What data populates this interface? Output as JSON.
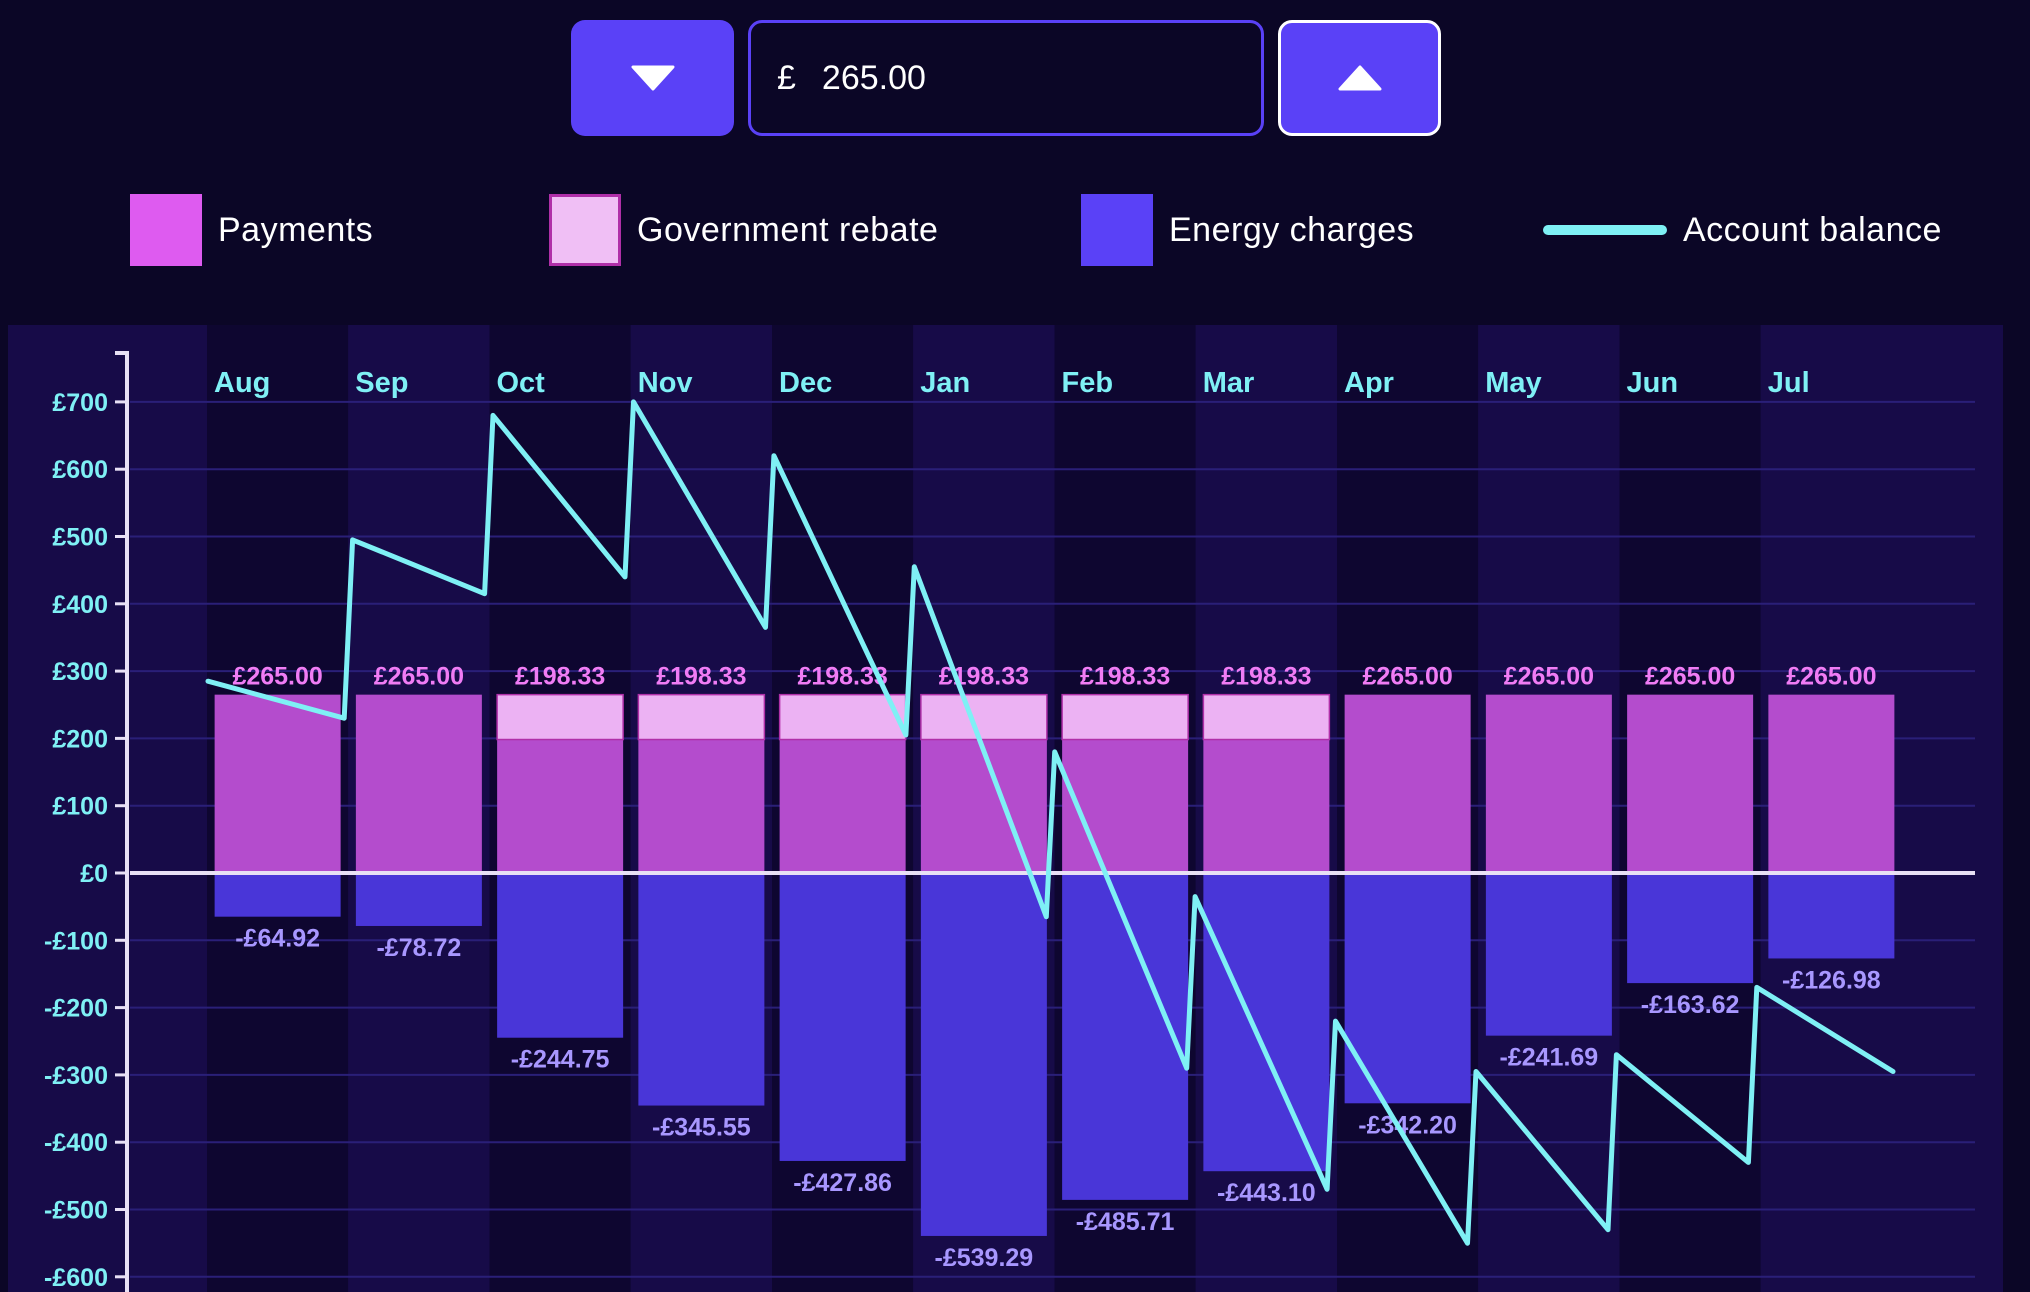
{
  "stepper": {
    "currency_symbol": "£",
    "amount": "265.00",
    "decrease_icon": "caret-down-icon",
    "increase_icon": "caret-up-icon"
  },
  "legend": [
    {
      "key": "payments",
      "label": "Payments",
      "color": "#de5bf0"
    },
    {
      "key": "rebate",
      "label": "Government rebate",
      "color": "#f0bff5"
    },
    {
      "key": "charges",
      "label": "Energy charges",
      "color": "#5a41f7"
    },
    {
      "key": "balance",
      "label": "Account balance",
      "color": "#7ff0f5"
    }
  ],
  "colors": {
    "background": "#0b0626",
    "band_light": "#170b48",
    "band_dark": "#0e0630",
    "payment_bar": "#b44ccd",
    "rebate_bar": "#ecb2f3",
    "charge_bar": "#4936d8",
    "balance_line": "#7ff0f5",
    "payment_label": "#f07cf5",
    "charge_label": "#a897ff",
    "axis_text": "#7ff0f5",
    "month_text": "#7ff0f5",
    "zero_line": "#e8e0f5"
  },
  "chart_data": {
    "type": "bar",
    "categories": [
      "Aug",
      "Sep",
      "Oct",
      "Nov",
      "Dec",
      "Jan",
      "Feb",
      "Mar",
      "Apr",
      "May",
      "Jun",
      "Jul"
    ],
    "ylim": [
      -600,
      700
    ],
    "yticks": [
      700,
      600,
      500,
      400,
      300,
      200,
      100,
      0,
      -100,
      -200,
      -300,
      -400,
      -500,
      -600
    ],
    "ytick_labels": [
      "£700",
      "£600",
      "£500",
      "£400",
      "£300",
      "£200",
      "£100",
      "£0",
      "-£100",
      "-£200",
      "-£300",
      "-£400",
      "-£500",
      "-£600"
    ],
    "grid": true,
    "series": [
      {
        "name": "Payments",
        "values": [
          265.0,
          265.0,
          198.33,
          198.33,
          198.33,
          198.33,
          198.33,
          198.33,
          265.0,
          265.0,
          265.0,
          265.0
        ]
      },
      {
        "name": "Government rebate",
        "values": [
          0,
          0,
          66.67,
          66.67,
          66.67,
          66.67,
          66.67,
          66.67,
          0,
          0,
          0,
          0
        ]
      },
      {
        "name": "Energy charges",
        "values": [
          -64.92,
          -78.72,
          -244.75,
          -345.55,
          -427.86,
          -539.29,
          -485.71,
          -443.1,
          -342.2,
          -241.69,
          -163.62,
          -126.98
        ]
      }
    ],
    "payment_labels": [
      "£265.00",
      "£265.00",
      "£198.33",
      "£198.33",
      "£198.33",
      "£198.33",
      "£198.33",
      "£198.33",
      "£265.00",
      "£265.00",
      "£265.00",
      "£265.00"
    ],
    "charge_labels": [
      "-£64.92",
      "-£78.72",
      "-£244.75",
      "-£345.55",
      "-£427.86",
      "-£539.29",
      "-£485.71",
      "-£443.10",
      "-£342.20",
      "-£241.69",
      "-£163.62",
      "-£126.98"
    ],
    "account_balance": {
      "name": "Account balance",
      "points": [
        {
          "x": 0.0,
          "y": 285
        },
        {
          "x": 0.97,
          "y": 230
        },
        {
          "x": 1.03,
          "y": 495
        },
        {
          "x": 1.97,
          "y": 415
        },
        {
          "x": 2.03,
          "y": 680
        },
        {
          "x": 2.97,
          "y": 440
        },
        {
          "x": 3.03,
          "y": 700
        },
        {
          "x": 3.97,
          "y": 365
        },
        {
          "x": 4.03,
          "y": 620
        },
        {
          "x": 4.97,
          "y": 205
        },
        {
          "x": 5.03,
          "y": 455
        },
        {
          "x": 5.97,
          "y": -65
        },
        {
          "x": 6.03,
          "y": 180
        },
        {
          "x": 6.97,
          "y": -290
        },
        {
          "x": 7.03,
          "y": -35
        },
        {
          "x": 7.97,
          "y": -470
        },
        {
          "x": 8.03,
          "y": -220
        },
        {
          "x": 8.97,
          "y": -550
        },
        {
          "x": 9.03,
          "y": -295
        },
        {
          "x": 9.97,
          "y": -530
        },
        {
          "x": 10.03,
          "y": -270
        },
        {
          "x": 10.97,
          "y": -430
        },
        {
          "x": 11.03,
          "y": -170
        },
        {
          "x": 12.0,
          "y": -295
        }
      ]
    }
  }
}
